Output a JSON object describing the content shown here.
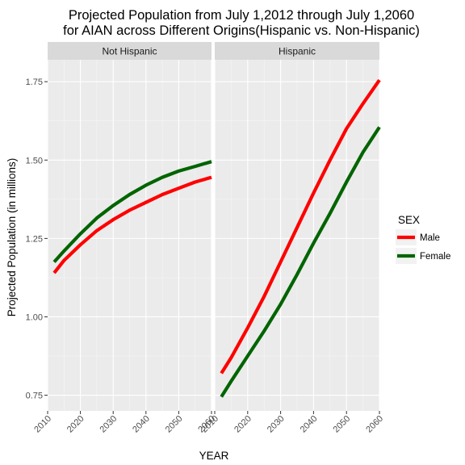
{
  "chart_data": {
    "type": "line",
    "title_lines": [
      "Projected Population from July 1,2012 through July 1,2060",
      "for AIAN across Different Origins(Hispanic vs. Non-Hispanic)"
    ],
    "xlabel": "YEAR",
    "ylabel": "Projected Population (in millions)",
    "xlim": [
      2010,
      2060
    ],
    "ylim": [
      0.7,
      1.82
    ],
    "x_ticks": [
      2010,
      2020,
      2030,
      2040,
      2050,
      2060
    ],
    "y_ticks": [
      0.75,
      1.0,
      1.25,
      1.5,
      1.75
    ],
    "y_tick_labels": [
      "0.75",
      "1.00",
      "1.25",
      "1.50",
      "1.75"
    ],
    "legend": {
      "title": "SEX",
      "placement": "right",
      "entries": [
        {
          "label": "Male",
          "color": "#ff0000"
        },
        {
          "label": "Female",
          "color": "#006400"
        }
      ]
    },
    "panels": [
      {
        "label": "Not Hispanic",
        "series": [
          {
            "name": "Male",
            "color": "#ff0000",
            "x": [
              2012,
              2015,
              2020,
              2025,
              2030,
              2035,
              2040,
              2045,
              2050,
              2055,
              2060
            ],
            "y": [
              1.14,
              1.18,
              1.23,
              1.275,
              1.31,
              1.34,
              1.365,
              1.39,
              1.41,
              1.43,
              1.445
            ]
          },
          {
            "name": "Female",
            "color": "#006400",
            "x": [
              2012,
              2015,
              2020,
              2025,
              2030,
              2035,
              2040,
              2045,
              2050,
              2055,
              2060
            ],
            "y": [
              1.175,
              1.21,
              1.265,
              1.315,
              1.355,
              1.39,
              1.42,
              1.445,
              1.465,
              1.48,
              1.495
            ]
          }
        ]
      },
      {
        "label": "Hispanic",
        "series": [
          {
            "name": "Male",
            "color": "#ff0000",
            "x": [
              2012,
              2015,
              2020,
              2025,
              2030,
              2035,
              2040,
              2045,
              2050,
              2055,
              2060
            ],
            "y": [
              0.82,
              0.87,
              0.965,
              1.065,
              1.175,
              1.285,
              1.395,
              1.5,
              1.6,
              1.68,
              1.755
            ]
          },
          {
            "name": "Female",
            "color": "#006400",
            "x": [
              2012,
              2015,
              2020,
              2025,
              2030,
              2035,
              2040,
              2045,
              2050,
              2055,
              2060
            ],
            "y": [
              0.745,
              0.795,
              0.875,
              0.955,
              1.04,
              1.135,
              1.235,
              1.33,
              1.43,
              1.525,
              1.605
            ]
          }
        ]
      }
    ]
  }
}
